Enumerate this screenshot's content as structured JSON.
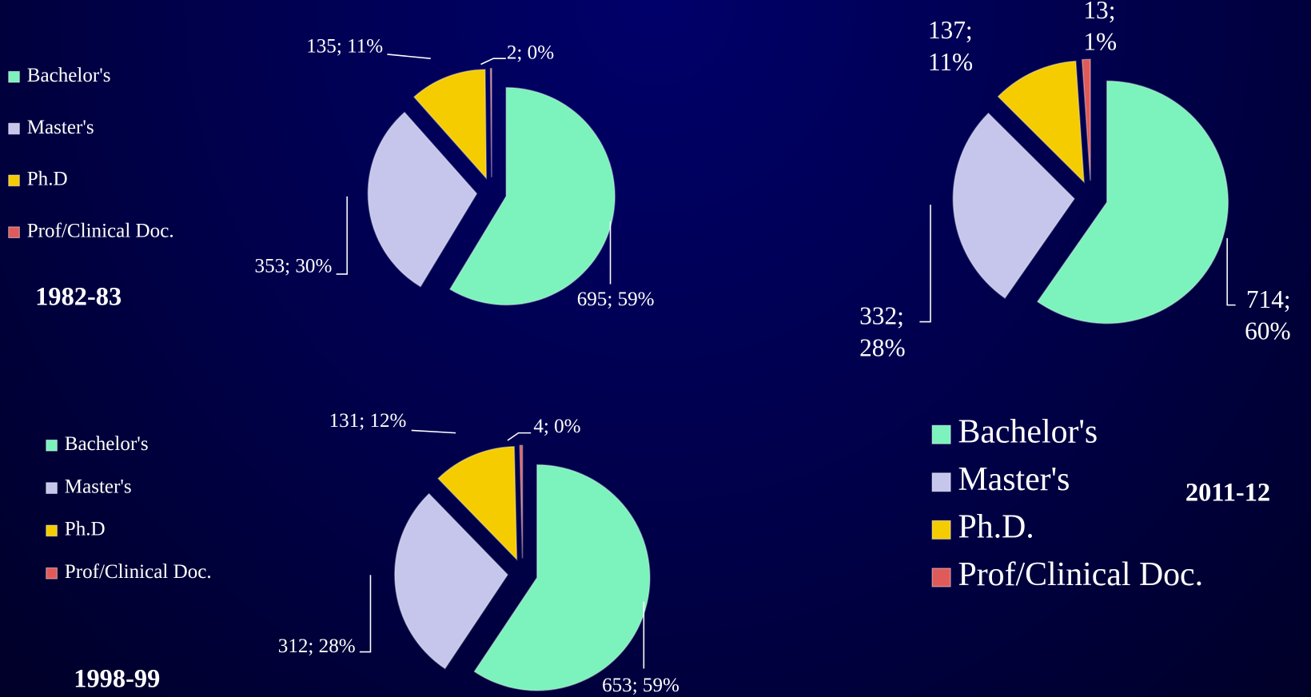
{
  "chart_data": [
    {
      "type": "pie",
      "title": "1982-83",
      "categories": [
        "Bachelor's",
        "Master's",
        "Ph.D",
        "Prof/Clinical Doc."
      ],
      "values": [
        695,
        353,
        135,
        2
      ],
      "value_labels": [
        "695; 59%",
        "353; 30%",
        "135; 11%",
        "2; 0%"
      ],
      "colors": [
        "#7cf2bc",
        "#c6c6ec",
        "#f5cc00",
        "#e05a5a"
      ]
    },
    {
      "type": "pie",
      "title": "2011-12",
      "categories": [
        "Bachelor's",
        "Master's",
        "Ph.D.",
        "Prof/Clinical Doc."
      ],
      "values": [
        714,
        332,
        137,
        13
      ],
      "value_labels": [
        "714; 60%",
        "332; 28%",
        "137; 11%",
        "13; 1%"
      ],
      "colors": [
        "#7cf2bc",
        "#c6c6ec",
        "#f5cc00",
        "#e05a5a"
      ]
    },
    {
      "type": "pie",
      "title": "1998-99",
      "categories": [
        "Bachelor's",
        "Master's",
        "Ph.D",
        "Prof/Clinical Doc."
      ],
      "values": [
        653,
        312,
        131,
        4
      ],
      "value_labels": [
        "653; 59%",
        "312; 28%",
        "131; 12%",
        "4; 0%"
      ],
      "colors": [
        "#7cf2bc",
        "#c6c6ec",
        "#f5cc00",
        "#e05a5a"
      ]
    }
  ]
}
